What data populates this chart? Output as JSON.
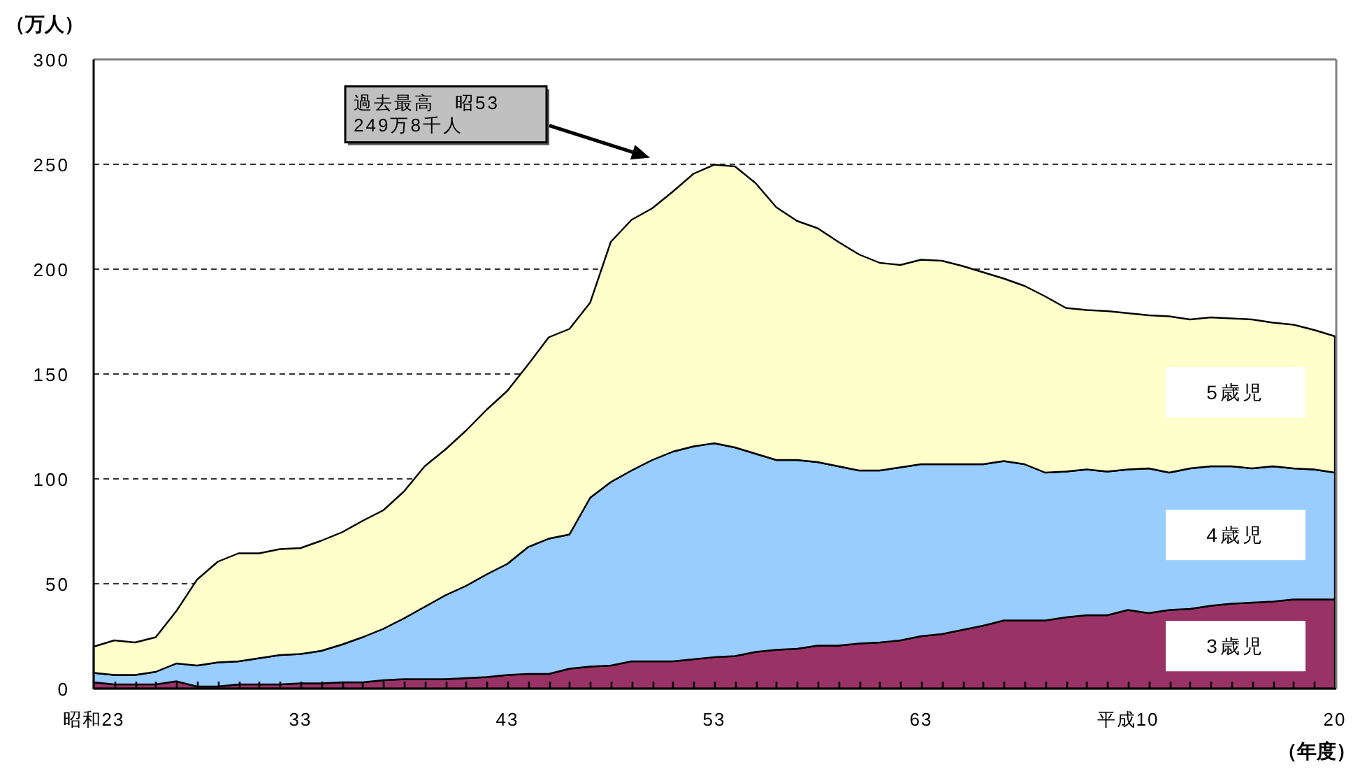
{
  "chart_data": {
    "type": "area",
    "stacked": true,
    "categories": [
      "昭和23",
      null,
      null,
      null,
      null,
      null,
      null,
      null,
      null,
      null,
      "33",
      null,
      null,
      null,
      null,
      null,
      null,
      null,
      null,
      null,
      "43",
      null,
      null,
      null,
      null,
      null,
      null,
      null,
      null,
      null,
      "53",
      null,
      null,
      null,
      null,
      null,
      null,
      null,
      null,
      null,
      "63",
      null,
      null,
      null,
      null,
      null,
      null,
      null,
      null,
      null,
      "平成10",
      null,
      null,
      null,
      null,
      null,
      null,
      null,
      null,
      null,
      "20"
    ],
    "series": [
      {
        "name": "3歳児",
        "color": "#993366",
        "values": [
          3,
          2,
          2,
          2,
          3.5,
          1,
          1,
          2,
          2,
          2,
          2.5,
          2.5,
          3,
          3,
          4,
          4.5,
          4.5,
          4.5,
          5,
          5.5,
          6.5,
          7,
          7,
          9.5,
          10.5,
          11,
          13,
          13,
          13,
          14,
          15,
          15.5,
          17.5,
          18.5,
          19,
          20.5,
          20.5,
          21.5,
          22,
          23,
          25,
          26,
          28,
          30,
          32.5,
          32.5,
          32.5,
          34,
          35,
          35,
          37.5,
          36,
          37.5,
          38,
          39.5,
          40.5,
          41,
          41.5,
          42.5,
          42.5,
          42.5
        ]
      },
      {
        "name": "4歳児",
        "color": "#99ccff",
        "values": [
          4.5,
          4.5,
          4.5,
          6,
          8.5,
          10,
          11.5,
          11,
          12.5,
          14,
          14,
          15.5,
          18,
          21.5,
          24.5,
          29,
          34.5,
          40,
          44,
          49,
          53,
          60.5,
          64.5,
          64,
          80.5,
          87.5,
          91,
          96,
          100,
          101.5,
          102,
          99.5,
          94.5,
          90.5,
          90,
          87.5,
          85.5,
          82.5,
          82,
          82.5,
          82,
          81,
          79,
          77,
          76,
          74.5,
          70.5,
          69.5,
          69.5,
          68.5,
          67,
          69,
          65.5,
          67,
          66.5,
          65.5,
          64,
          64.5,
          62.5,
          62,
          60.5
        ]
      },
      {
        "name": "5歳児",
        "color": "#ffffcc",
        "values": [
          12.5,
          16.5,
          15.5,
          16.5,
          25,
          41,
          48,
          51.5,
          50,
          50.5,
          50.5,
          52.5,
          53.5,
          55.5,
          56.5,
          60.5,
          67,
          69.5,
          74,
          78.5,
          82.5,
          87,
          96,
          98,
          93,
          114.5,
          119.5,
          120,
          124,
          130,
          132.8,
          134,
          129,
          120.5,
          114,
          111.5,
          107,
          103,
          99,
          96.5,
          97.5,
          97,
          94.5,
          91.5,
          87,
          85,
          84,
          78,
          76,
          76.5,
          74.5,
          73,
          74.5,
          71,
          71,
          70.5,
          71,
          68.5,
          68.5,
          66.5,
          65
        ]
      }
    ],
    "ylim": [
      0,
      300
    ],
    "yticks": [
      0,
      50,
      100,
      150,
      200,
      250,
      300
    ],
    "grid": "y",
    "ylabel": "（万人）",
    "xlabel": "（年度）",
    "annotations": [
      "過去最高　昭53\n249万8千人"
    ]
  }
}
